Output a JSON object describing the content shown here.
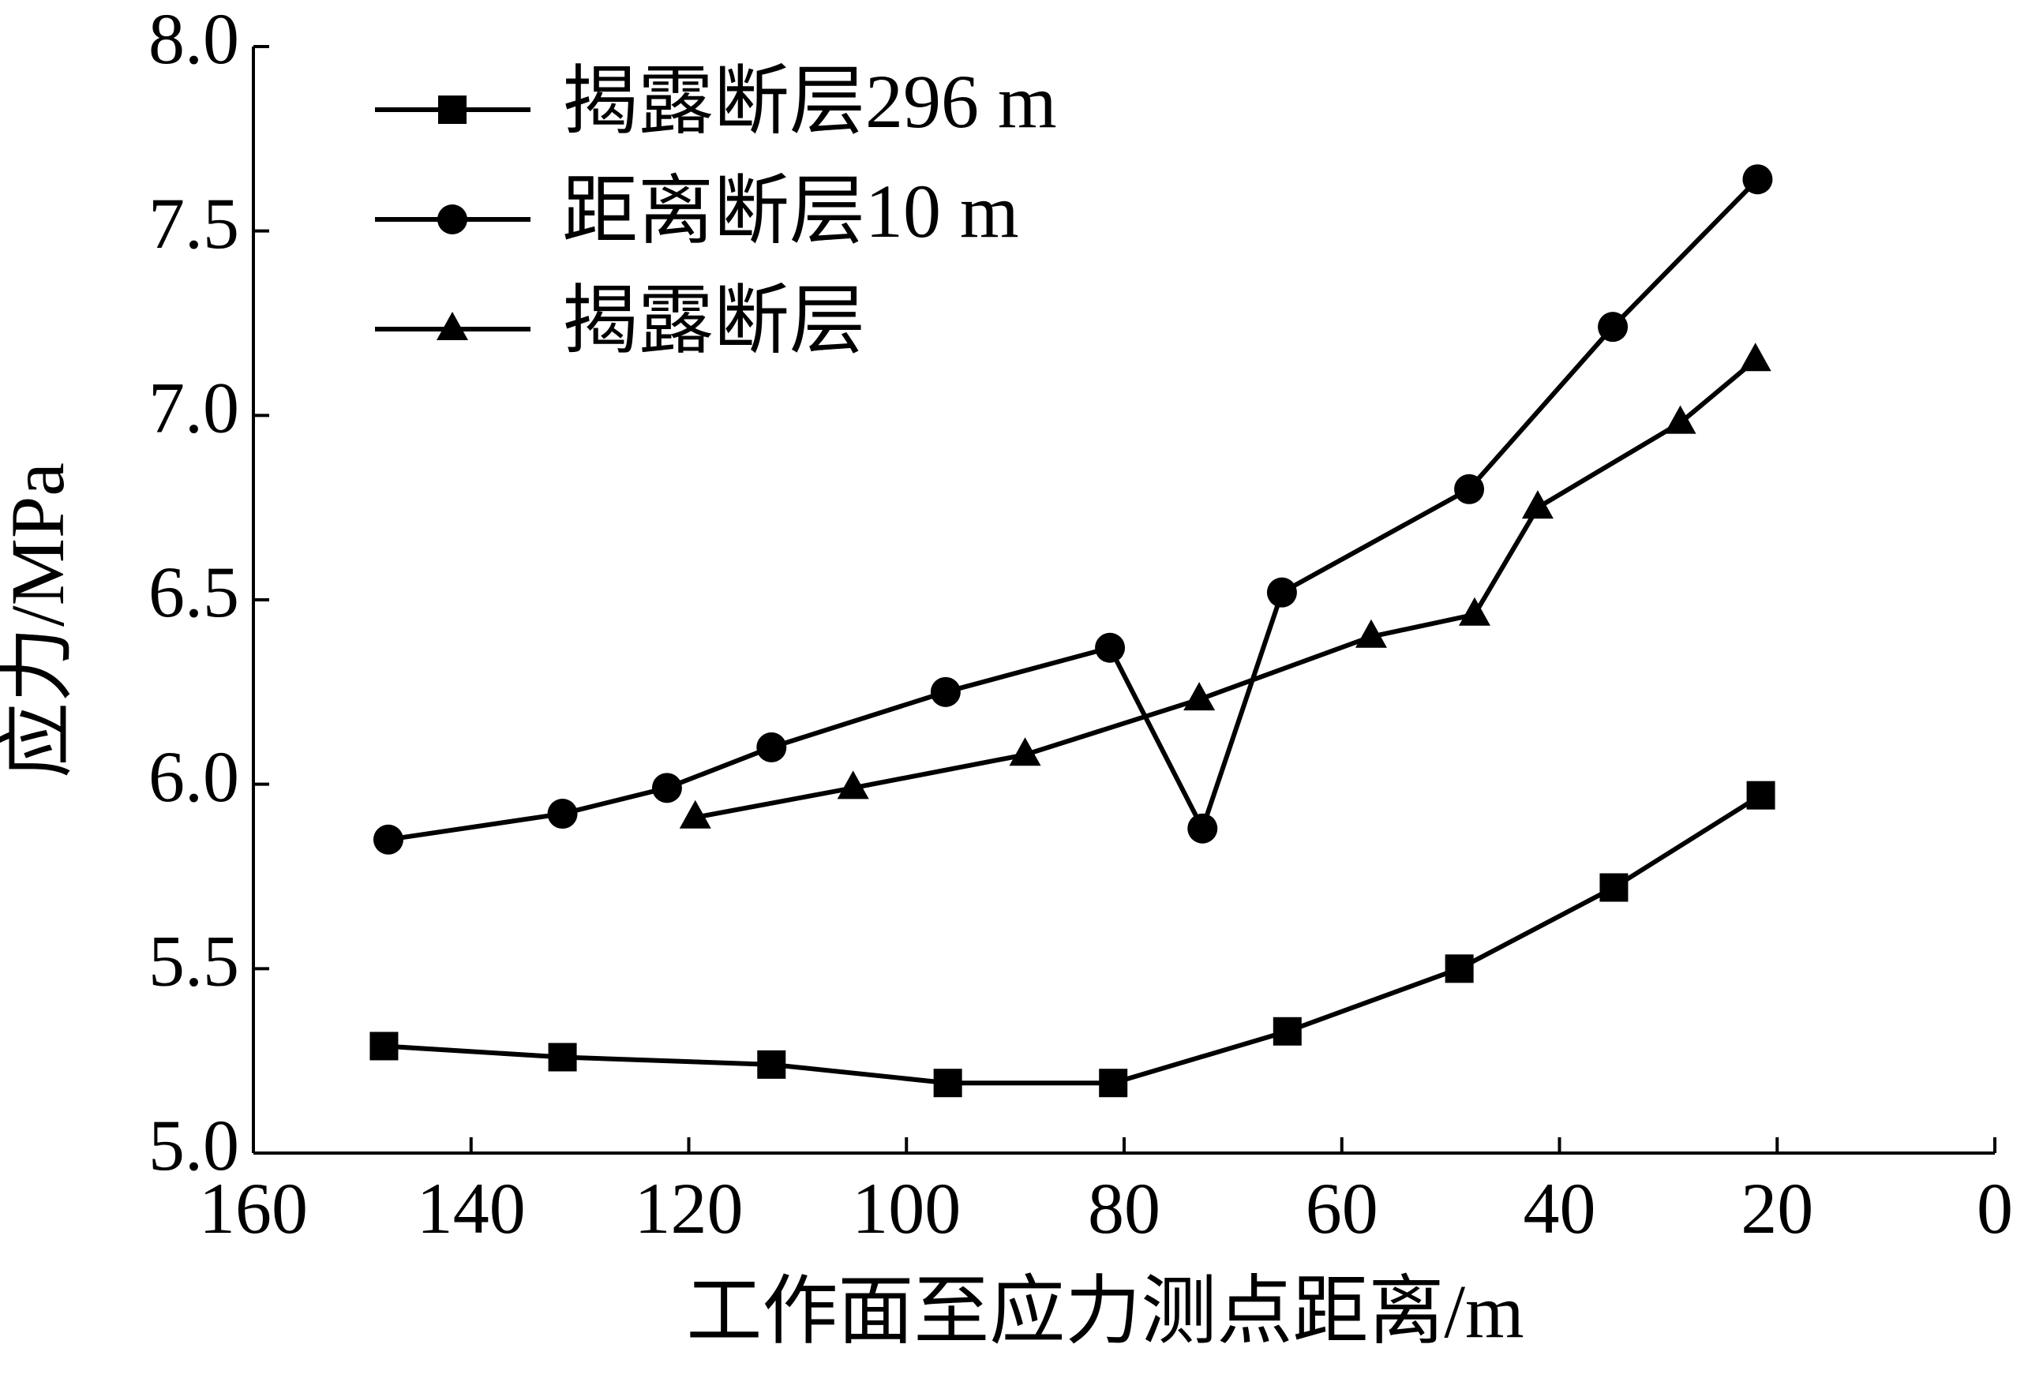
{
  "chart_data": {
    "type": "line",
    "xlabel": "工作面至应力测点距离/m",
    "ylabel": "应力/MPa",
    "xlim": [
      160,
      0
    ],
    "xticks": [
      160,
      140,
      120,
      100,
      80,
      60,
      40,
      20,
      0
    ],
    "ylim": [
      5.0,
      8.0
    ],
    "yticks": [
      {
        "value": 5.0,
        "label": "5.0"
      },
      {
        "value": 5.5,
        "label": "5.5"
      },
      {
        "value": 6.0,
        "label": "6.0"
      },
      {
        "value": 6.5,
        "label": "6.5"
      },
      {
        "value": 7.0,
        "label": "7.0"
      },
      {
        "value": 7.5,
        "label": "7.5"
      },
      {
        "value": 8.0,
        "label": "8.0"
      }
    ],
    "series": [
      {
        "name": "揭露断层296 m",
        "color": "#000000",
        "marker": "square",
        "x": [
          148.0,
          131.6,
          112.4,
          96.2,
          81.0,
          65.0,
          49.2,
          35.0,
          21.5
        ],
        "values": [
          5.29,
          5.26,
          5.24,
          5.19,
          5.19,
          5.33,
          5.5,
          5.72,
          5.97
        ]
      },
      {
        "name": "距离断层10 m",
        "color": "#000000",
        "marker": "circle",
        "x": [
          147.6,
          131.6,
          122.0,
          112.4,
          96.4,
          81.3,
          72.8,
          65.5,
          48.3,
          35.1,
          21.8
        ],
        "values": [
          5.85,
          5.92,
          5.99,
          6.1,
          6.25,
          6.37,
          5.88,
          6.52,
          6.8,
          7.24,
          7.64
        ]
      },
      {
        "name": "揭露断层",
        "color": "#000000",
        "marker": "triangle",
        "x": [
          119.4,
          104.9,
          89.1,
          73.1,
          57.3,
          47.8,
          42.0,
          28.9,
          22.0
        ],
        "values": [
          5.91,
          5.99,
          6.08,
          6.23,
          6.4,
          6.46,
          6.75,
          6.98,
          7.15
        ]
      }
    ]
  }
}
